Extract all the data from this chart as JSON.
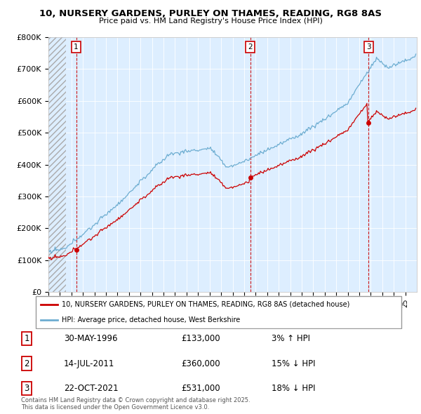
{
  "title": "10, NURSERY GARDENS, PURLEY ON THAMES, READING, RG8 8AS",
  "subtitle": "Price paid vs. HM Land Registry's House Price Index (HPI)",
  "ylim": [
    0,
    800000
  ],
  "yticks": [
    0,
    100000,
    200000,
    300000,
    400000,
    500000,
    600000,
    700000,
    800000
  ],
  "ytick_labels": [
    "£0",
    "£100K",
    "£200K",
    "£300K",
    "£400K",
    "£500K",
    "£600K",
    "£700K",
    "£800K"
  ],
  "sale_dates": [
    1996.41,
    2011.53,
    2021.81
  ],
  "sale_prices": [
    133000,
    360000,
    531000
  ],
  "sale_labels": [
    "1",
    "2",
    "3"
  ],
  "hpi_color": "#6dadd1",
  "sale_color": "#cc0000",
  "bg_color": "#ddeeff",
  "legend_sale": "10, NURSERY GARDENS, PURLEY ON THAMES, READING, RG8 8AS (detached house)",
  "legend_hpi": "HPI: Average price, detached house, West Berkshire",
  "table_rows": [
    [
      "1",
      "30-MAY-1996",
      "£133,000",
      "3% ↑ HPI"
    ],
    [
      "2",
      "14-JUL-2011",
      "£360,000",
      "15% ↓ HPI"
    ],
    [
      "3",
      "22-OCT-2021",
      "£531,000",
      "18% ↓ HPI"
    ]
  ],
  "footnote": "Contains HM Land Registry data © Crown copyright and database right 2025.\nThis data is licensed under the Open Government Licence v3.0.",
  "xmin": 1994,
  "xmax": 2026
}
